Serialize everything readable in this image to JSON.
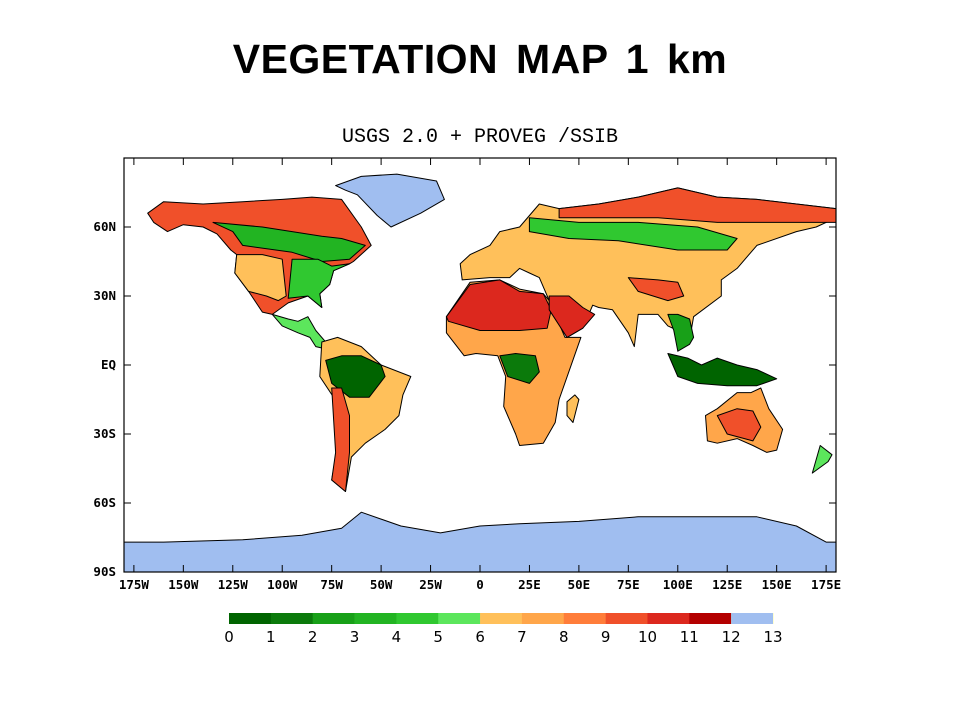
{
  "title": "VEGETATION  MAP 1 km",
  "map_title": "USGS 2.0 + PROVEG /SSIB",
  "map": {
    "projection": "equirectangular",
    "lon_range": [
      -180,
      180
    ],
    "lat_range": [
      -90,
      90
    ],
    "lat_ticks": [
      {
        "value": 60,
        "label": "60N"
      },
      {
        "value": 30,
        "label": "30N"
      },
      {
        "value": 0,
        "label": "EQ"
      },
      {
        "value": -30,
        "label": "30S"
      },
      {
        "value": -60,
        "label": "60S"
      },
      {
        "value": -90,
        "label": "90S"
      }
    ],
    "lon_ticks": [
      {
        "value": -175,
        "label": "175W"
      },
      {
        "value": -150,
        "label": "150W"
      },
      {
        "value": -125,
        "label": "125W"
      },
      {
        "value": -100,
        "label": "100W"
      },
      {
        "value": -75,
        "label": "75W"
      },
      {
        "value": -50,
        "label": "50W"
      },
      {
        "value": -25,
        "label": "25W"
      },
      {
        "value": 0,
        "label": "0"
      },
      {
        "value": 25,
        "label": "25E"
      },
      {
        "value": 50,
        "label": "50E"
      },
      {
        "value": 75,
        "label": "75E"
      },
      {
        "value": 100,
        "label": "100E"
      },
      {
        "value": 125,
        "label": "125E"
      },
      {
        "value": 150,
        "label": "150E"
      },
      {
        "value": 175,
        "label": "175E"
      }
    ]
  },
  "colorbar": {
    "labels": [
      "0",
      "1",
      "2",
      "3",
      "4",
      "5",
      "6",
      "7",
      "8",
      "9",
      "10",
      "11",
      "12",
      "13"
    ],
    "colors": [
      "#006400",
      "#0b7a0b",
      "#18a018",
      "#22b422",
      "#30c830",
      "#5ce65c",
      "#ffc05a",
      "#ffa64a",
      "#ff7d3a",
      "#f0502a",
      "#dc281e",
      "#b40000",
      "#ffff66",
      "#a0bef0"
    ]
  },
  "regions": [
    {
      "name": "antarctica",
      "class": 13,
      "lon": [
        -180,
        -160,
        -120,
        -90,
        -70,
        -60,
        -40,
        -20,
        0,
        20,
        50,
        80,
        110,
        140,
        160,
        175,
        180,
        180,
        -180
      ],
      "lat": [
        -77,
        -77,
        -76,
        -74,
        -71,
        -64,
        -70,
        -73,
        -70,
        -69,
        -68,
        -66,
        -66,
        -66,
        -70,
        -77,
        -77,
        -90,
        -90
      ]
    },
    {
      "name": "greenland",
      "class": 13,
      "lon": [
        -73,
        -60,
        -42,
        -22,
        -18,
        -30,
        -45,
        -52,
        -62,
        -68
      ],
      "lat": [
        78,
        82,
        83,
        80,
        72,
        66,
        60,
        65,
        74,
        76
      ]
    },
    {
      "name": "north-america",
      "class": 9,
      "lon": [
        -168,
        -160,
        -140,
        -120,
        -100,
        -85,
        -70,
        -60,
        -55,
        -64,
        -66,
        -74,
        -76,
        -81,
        -80,
        -87,
        -97,
        -105,
        -110,
        -117,
        -124,
        -123,
        -126,
        -133,
        -140,
        -150,
        -158,
        -165
      ],
      "lat": [
        66,
        71,
        70,
        71,
        72,
        73,
        72,
        60,
        52,
        45,
        44,
        41,
        35,
        31,
        25,
        30,
        27,
        22,
        23,
        32,
        40,
        48,
        50,
        57,
        60,
        61,
        58,
        62
      ]
    },
    {
      "name": "na-boreal",
      "class": 3,
      "lon": [
        -135,
        -110,
        -95,
        -80,
        -70,
        -58,
        -66,
        -80,
        -95,
        -120,
        -125
      ],
      "lat": [
        62,
        60,
        58,
        56,
        55,
        52,
        46,
        45,
        49,
        52,
        58
      ]
    },
    {
      "name": "na-east",
      "class": 4,
      "lon": [
        -95,
        -82,
        -75,
        -66,
        -74,
        -76,
        -81,
        -80,
        -87,
        -97
      ],
      "lat": [
        46,
        46,
        43,
        44,
        41,
        35,
        31,
        25,
        30,
        29
      ]
    },
    {
      "name": "na-west",
      "class": 6,
      "lon": [
        -123,
        -110,
        -100,
        -98,
        -102,
        -108,
        -117,
        -124
      ],
      "lat": [
        48,
        48,
        46,
        30,
        28,
        30,
        32,
        40
      ]
    },
    {
      "name": "central-america",
      "class": 5,
      "lon": [
        -105,
        -97,
        -92,
        -87,
        -83,
        -77,
        -78,
        -83,
        -86,
        -92,
        -100
      ],
      "lat": [
        22,
        20,
        19,
        21,
        15,
        9,
        7,
        8,
        12,
        14,
        17
      ]
    },
    {
      "name": "south-america",
      "class": 6,
      "lon": [
        -80,
        -72,
        -60,
        -50,
        -35,
        -39,
        -41,
        -48,
        -58,
        -65,
        -68,
        -75,
        -73,
        -71,
        -81
      ],
      "lat": [
        10,
        12,
        8,
        0,
        -5,
        -13,
        -22,
        -28,
        -34,
        -40,
        -55,
        -50,
        -40,
        -18,
        -5
      ]
    },
    {
      "name": "amazon",
      "class": 0,
      "lon": [
        -78,
        -70,
        -60,
        -50,
        -48,
        -56,
        -66,
        -75
      ],
      "lat": [
        2,
        4,
        4,
        0,
        -5,
        -14,
        -14,
        -8
      ]
    },
    {
      "name": "andes-south",
      "class": 9,
      "lon": [
        -75,
        -70,
        -66,
        -66,
        -68,
        -75,
        -73
      ],
      "lat": [
        -10,
        -10,
        -22,
        -38,
        -55,
        -50,
        -38
      ]
    },
    {
      "name": "africa",
      "class": 7,
      "lon": [
        -17,
        -5,
        10,
        20,
        32,
        35,
        43,
        51,
        40,
        38,
        32,
        20,
        18,
        12,
        13,
        9,
        -2,
        -8,
        -17
      ],
      "lat": [
        21,
        36,
        37,
        33,
        31,
        28,
        12,
        12,
        -15,
        -25,
        -34,
        -35,
        -30,
        -18,
        -5,
        4,
        5,
        4,
        14
      ]
    },
    {
      "name": "sahara",
      "class": 10,
      "lon": [
        -17,
        -5,
        10,
        20,
        32,
        36,
        34,
        20,
        0,
        -16
      ],
      "lat": [
        21,
        35,
        37,
        32,
        31,
        24,
        16,
        15,
        15,
        19
      ]
    },
    {
      "name": "congo",
      "class": 1,
      "lon": [
        10,
        18,
        28,
        30,
        25,
        14
      ],
      "lat": [
        4,
        5,
        4,
        -3,
        -8,
        -5
      ]
    },
    {
      "name": "madagascar",
      "class": 6,
      "lon": [
        44,
        48,
        50,
        47,
        44
      ],
      "lat": [
        -16,
        -13,
        -15,
        -25,
        -22
      ]
    },
    {
      "name": "eurasia",
      "class": 6,
      "lon": [
        -10,
        -5,
        5,
        10,
        20,
        30,
        40,
        60,
        80,
        100,
        120,
        140,
        160,
        180,
        180,
        170,
        160,
        140,
        130,
        122,
        122,
        108,
        106,
        100,
        95,
        90,
        80,
        78,
        75,
        67,
        60,
        57,
        52,
        44,
        35,
        30,
        25,
        20,
        15,
        5,
        -9
      ],
      "lat": [
        44,
        48,
        52,
        58,
        60,
        70,
        68,
        70,
        73,
        77,
        73,
        72,
        70,
        68,
        64,
        60,
        58,
        52,
        42,
        37,
        30,
        21,
        11,
        15,
        17,
        22,
        22,
        8,
        14,
        24,
        25,
        26,
        16,
        12,
        28,
        38,
        40,
        42,
        38,
        38,
        37
      ]
    },
    {
      "name": "siberia",
      "class": 9,
      "lon": [
        40,
        60,
        80,
        100,
        120,
        140,
        160,
        180,
        180,
        150,
        120,
        90,
        60,
        40
      ],
      "lat": [
        68,
        70,
        73,
        77,
        73,
        72,
        70,
        68,
        62,
        62,
        62,
        64,
        64,
        64
      ]
    },
    {
      "name": "boreal-eurasia",
      "class": 4,
      "lon": [
        25,
        50,
        80,
        110,
        130,
        125,
        100,
        70,
        45,
        25
      ],
      "lat": [
        64,
        62,
        62,
        60,
        55,
        50,
        50,
        54,
        55,
        58
      ]
    },
    {
      "name": "arabia",
      "class": 10,
      "lon": [
        35,
        45,
        52,
        58,
        52,
        44,
        35
      ],
      "lat": [
        30,
        30,
        25,
        22,
        16,
        12,
        24
      ]
    },
    {
      "name": "tibet",
      "class": 9,
      "lon": [
        75,
        90,
        100,
        103,
        95,
        80
      ],
      "lat": [
        38,
        37,
        36,
        30,
        28,
        32
      ]
    },
    {
      "name": "se-asia",
      "class": 2,
      "lon": [
        95,
        100,
        106,
        108,
        106,
        100,
        98
      ],
      "lat": [
        22,
        22,
        20,
        12,
        9,
        6,
        15
      ]
    },
    {
      "name": "indonesia",
      "class": 0,
      "lon": [
        95,
        105,
        112,
        120,
        130,
        140,
        150,
        140,
        125,
        110,
        100
      ],
      "lat": [
        5,
        3,
        0,
        3,
        0,
        -2,
        -6,
        -9,
        -9,
        -8,
        -5
      ]
    },
    {
      "name": "australia",
      "class": 7,
      "lon": [
        114,
        120,
        130,
        137,
        142,
        146,
        153,
        150,
        145,
        138,
        130,
        120,
        115
      ],
      "lat": [
        -22,
        -19,
        -12,
        -12,
        -10,
        -19,
        -28,
        -37,
        -38,
        -35,
        -32,
        -34,
        -33
      ]
    },
    {
      "name": "central-australia",
      "class": 9,
      "lon": [
        120,
        130,
        138,
        142,
        138,
        125
      ],
      "lat": [
        -22,
        -19,
        -20,
        -27,
        -33,
        -30
      ]
    },
    {
      "name": "new-zealand",
      "class": 5,
      "lon": [
        172,
        178,
        176,
        168
      ],
      "lat": [
        -35,
        -39,
        -42,
        -47
      ]
    }
  ]
}
